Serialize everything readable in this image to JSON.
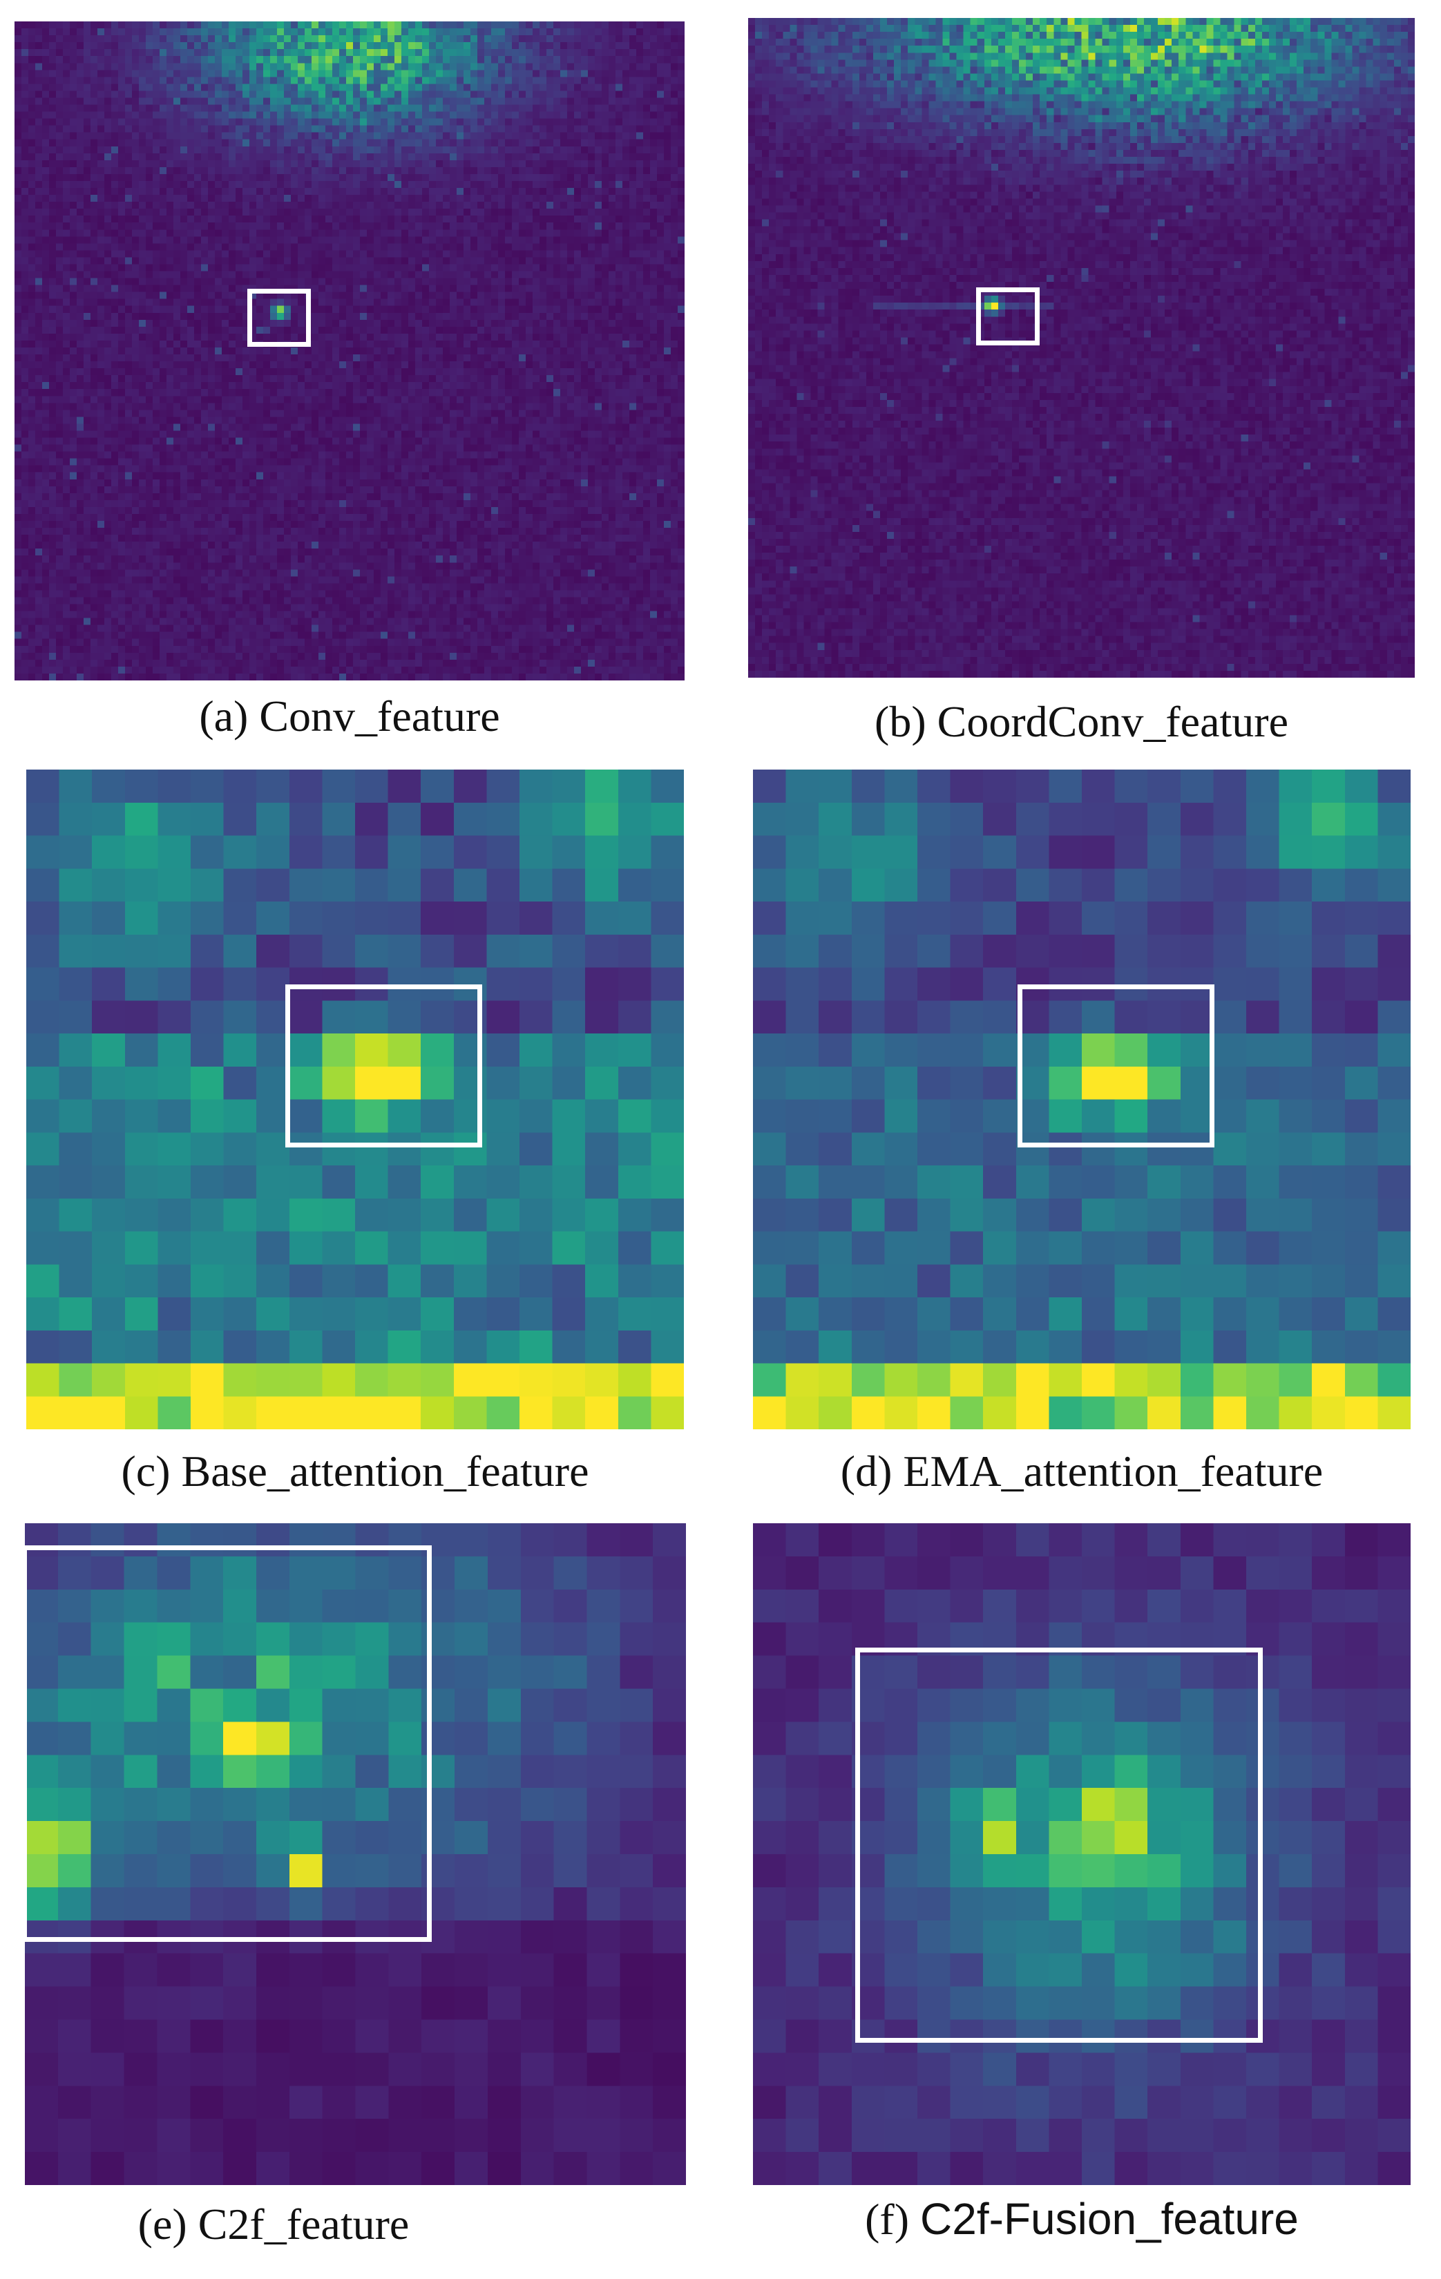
{
  "panels": [
    {
      "id": "a",
      "prefix": "(a) ",
      "name": "Conv_feature",
      "sans": false
    },
    {
      "id": "b",
      "prefix": "(b) ",
      "name": "CoordConv_feature",
      "sans": false
    },
    {
      "id": "c",
      "prefix": "(c) ",
      "name": "Base_attention_feature",
      "sans": false
    },
    {
      "id": "d",
      "prefix": "(d) ",
      "name": "EMA_attention_feature",
      "sans": false
    },
    {
      "id": "e",
      "prefix": "(e) ",
      "name": "C2f_feature",
      "sans": false
    },
    {
      "id": "f",
      "prefix": "(f) ",
      "name": "C2f-Fusion_feature",
      "sans": true
    }
  ],
  "colormap": "viridis"
}
